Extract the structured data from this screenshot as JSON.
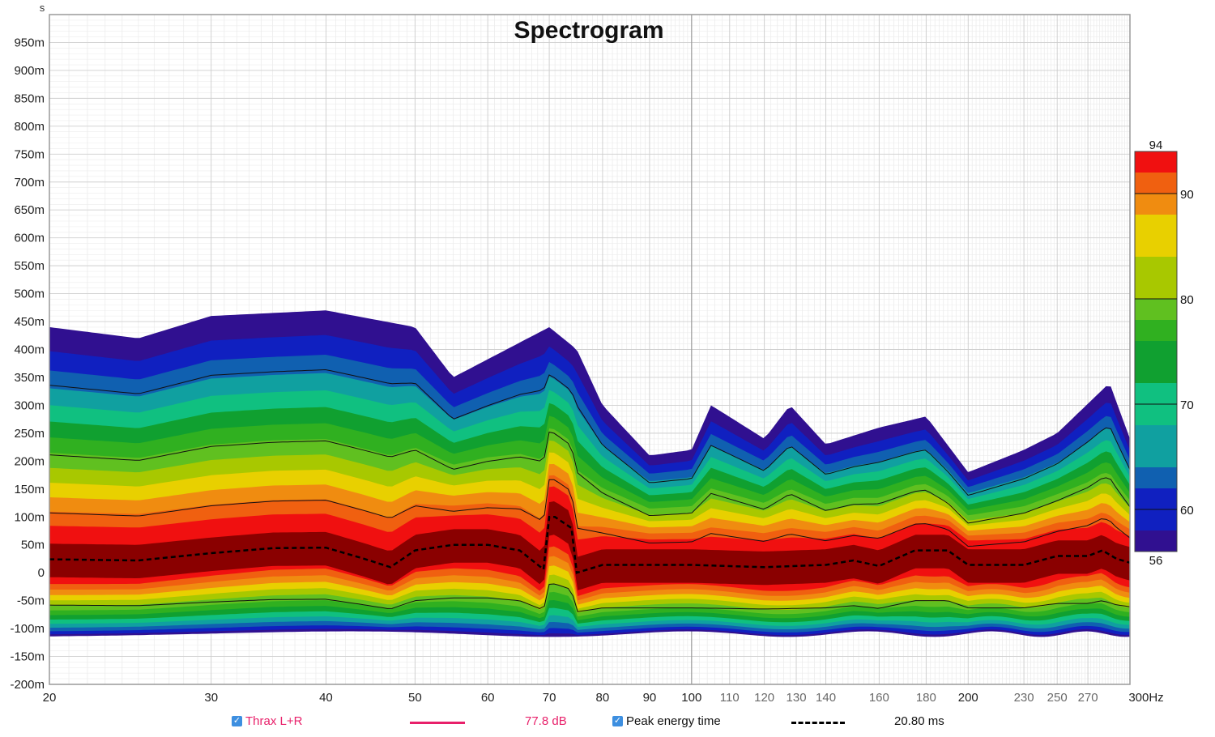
{
  "chart_data": {
    "type": "heatmap",
    "title": "Spectrogram",
    "y_unit_label": "s",
    "x_unit_suffix": "Hz",
    "x_scale": "log",
    "xlim": [
      20,
      300
    ],
    "ylim": [
      -0.2,
      1.0
    ],
    "x_ticks": [
      {
        "value": 20,
        "label": "20",
        "major": true
      },
      {
        "value": 30,
        "label": "30",
        "major": true
      },
      {
        "value": 40,
        "label": "40",
        "major": true
      },
      {
        "value": 50,
        "label": "50",
        "major": true
      },
      {
        "value": 60,
        "label": "60",
        "major": true
      },
      {
        "value": 70,
        "label": "70",
        "major": true
      },
      {
        "value": 80,
        "label": "80",
        "major": true
      },
      {
        "value": 90,
        "label": "90",
        "major": true
      },
      {
        "value": 100,
        "label": "100",
        "major": true
      },
      {
        "value": 110,
        "label": "110",
        "major": false
      },
      {
        "value": 120,
        "label": "120",
        "major": false
      },
      {
        "value": 130,
        "label": "130",
        "major": false
      },
      {
        "value": 140,
        "label": "140",
        "major": false
      },
      {
        "value": 160,
        "label": "160",
        "major": false
      },
      {
        "value": 180,
        "label": "180",
        "major": false
      },
      {
        "value": 200,
        "label": "200",
        "major": true
      },
      {
        "value": 230,
        "label": "230",
        "major": false
      },
      {
        "value": 250,
        "label": "250",
        "major": false
      },
      {
        "value": 270,
        "label": "270",
        "major": false
      },
      {
        "value": 300,
        "label": "300Hz",
        "major": true
      }
    ],
    "y_ticks": [
      {
        "value": 0.95,
        "label": "950m"
      },
      {
        "value": 0.9,
        "label": "900m"
      },
      {
        "value": 0.85,
        "label": "850m"
      },
      {
        "value": 0.8,
        "label": "800m"
      },
      {
        "value": 0.75,
        "label": "750m"
      },
      {
        "value": 0.7,
        "label": "700m"
      },
      {
        "value": 0.65,
        "label": "650m"
      },
      {
        "value": 0.6,
        "label": "600m"
      },
      {
        "value": 0.55,
        "label": "550m"
      },
      {
        "value": 0.5,
        "label": "500m"
      },
      {
        "value": 0.45,
        "label": "450m"
      },
      {
        "value": 0.4,
        "label": "400m"
      },
      {
        "value": 0.35,
        "label": "350m"
      },
      {
        "value": 0.3,
        "label": "300m"
      },
      {
        "value": 0.25,
        "label": "250m"
      },
      {
        "value": 0.2,
        "label": "200m"
      },
      {
        "value": 0.15,
        "label": "150m"
      },
      {
        "value": 0.1,
        "label": "100m"
      },
      {
        "value": 0.05,
        "label": "50m"
      },
      {
        "value": 0.0,
        "label": "0"
      },
      {
        "value": -0.05,
        "label": "-50m"
      },
      {
        "value": -0.1,
        "label": "-100m"
      },
      {
        "value": -0.15,
        "label": "-150m"
      },
      {
        "value": -0.2,
        "label": "-200m"
      }
    ],
    "colorbar": {
      "min": 56,
      "max": 94,
      "min_label": "56",
      "max_label": "94",
      "tick_labels": [
        {
          "value": 90,
          "label": "90"
        },
        {
          "value": 80,
          "label": "80"
        },
        {
          "value": 70,
          "label": "70"
        },
        {
          "value": 60,
          "label": "60"
        }
      ],
      "bands": [
        {
          "from": 92,
          "to": 94,
          "color": "#f01010"
        },
        {
          "from": 90,
          "to": 92,
          "color": "#f06010"
        },
        {
          "from": 88,
          "to": 90,
          "color": "#f08c10"
        },
        {
          "from": 84,
          "to": 88,
          "color": "#e8d000"
        },
        {
          "from": 80,
          "to": 84,
          "color": "#a8c800"
        },
        {
          "from": 78,
          "to": 80,
          "color": "#60c020"
        },
        {
          "from": 76,
          "to": 78,
          "color": "#30b020"
        },
        {
          "from": 72,
          "to": 76,
          "color": "#10a030"
        },
        {
          "from": 68,
          "to": 72,
          "color": "#10c080"
        },
        {
          "from": 64,
          "to": 68,
          "color": "#10a0a0"
        },
        {
          "from": 62,
          "to": 64,
          "color": "#1060b0"
        },
        {
          "from": 58,
          "to": 62,
          "color": "#1020c0"
        },
        {
          "from": 56,
          "to": 58,
          "color": "#301090"
        }
      ]
    },
    "heatmap_summary": {
      "description_peak": "dark red core band centred slightly above 0 s across all frequencies",
      "peak_band_time_range": [
        -0.02,
        0.04
      ],
      "decay_top_by_frequency": [
        {
          "hz": 20,
          "top_s": 0.44
        },
        {
          "hz": 25,
          "top_s": 0.42
        },
        {
          "hz": 30,
          "top_s": 0.46
        },
        {
          "hz": 40,
          "top_s": 0.47
        },
        {
          "hz": 50,
          "top_s": 0.44
        },
        {
          "hz": 55,
          "top_s": 0.35
        },
        {
          "hz": 70,
          "top_s": 0.44
        },
        {
          "hz": 75,
          "top_s": 0.4
        },
        {
          "hz": 80,
          "top_s": 0.3
        },
        {
          "hz": 90,
          "top_s": 0.21
        },
        {
          "hz": 100,
          "top_s": 0.22
        },
        {
          "hz": 105,
          "top_s": 0.3
        },
        {
          "hz": 120,
          "top_s": 0.24
        },
        {
          "hz": 128,
          "top_s": 0.3
        },
        {
          "hz": 140,
          "top_s": 0.23
        },
        {
          "hz": 160,
          "top_s": 0.26
        },
        {
          "hz": 180,
          "top_s": 0.28
        },
        {
          "hz": 200,
          "top_s": 0.18
        },
        {
          "hz": 230,
          "top_s": 0.22
        },
        {
          "hz": 250,
          "top_s": 0.25
        },
        {
          "hz": 285,
          "top_s": 0.34
        },
        {
          "hz": 300,
          "top_s": 0.24
        }
      ],
      "decay_bottom_s": -0.11
    },
    "series": [
      {
        "name": "Peak energy time",
        "style": "dashed",
        "color": "#000000",
        "x": [
          20,
          25,
          30,
          35,
          40,
          44,
          47,
          50,
          55,
          60,
          65,
          69,
          70,
          71,
          74,
          75,
          80,
          90,
          100,
          120,
          140,
          150,
          160,
          175,
          190,
          200,
          230,
          250,
          270,
          280,
          290,
          300
        ],
        "y": [
          0.024,
          0.022,
          0.035,
          0.044,
          0.045,
          0.025,
          0.01,
          0.04,
          0.05,
          0.05,
          0.04,
          0.006,
          0.1,
          0.1,
          0.08,
          0.0,
          0.014,
          0.014,
          0.014,
          0.01,
          0.014,
          0.022,
          0.012,
          0.04,
          0.04,
          0.014,
          0.014,
          0.03,
          0.03,
          0.04,
          0.025,
          0.018
        ]
      }
    ]
  },
  "legend": {
    "measurement_name": "Thrax L+R",
    "measurement_value": "77.8 dB",
    "measurement_color": "#e8206a",
    "overlay_name": "Peak energy time",
    "overlay_value": "20.80 ms",
    "checkbox_color": "#3d8fe0"
  }
}
